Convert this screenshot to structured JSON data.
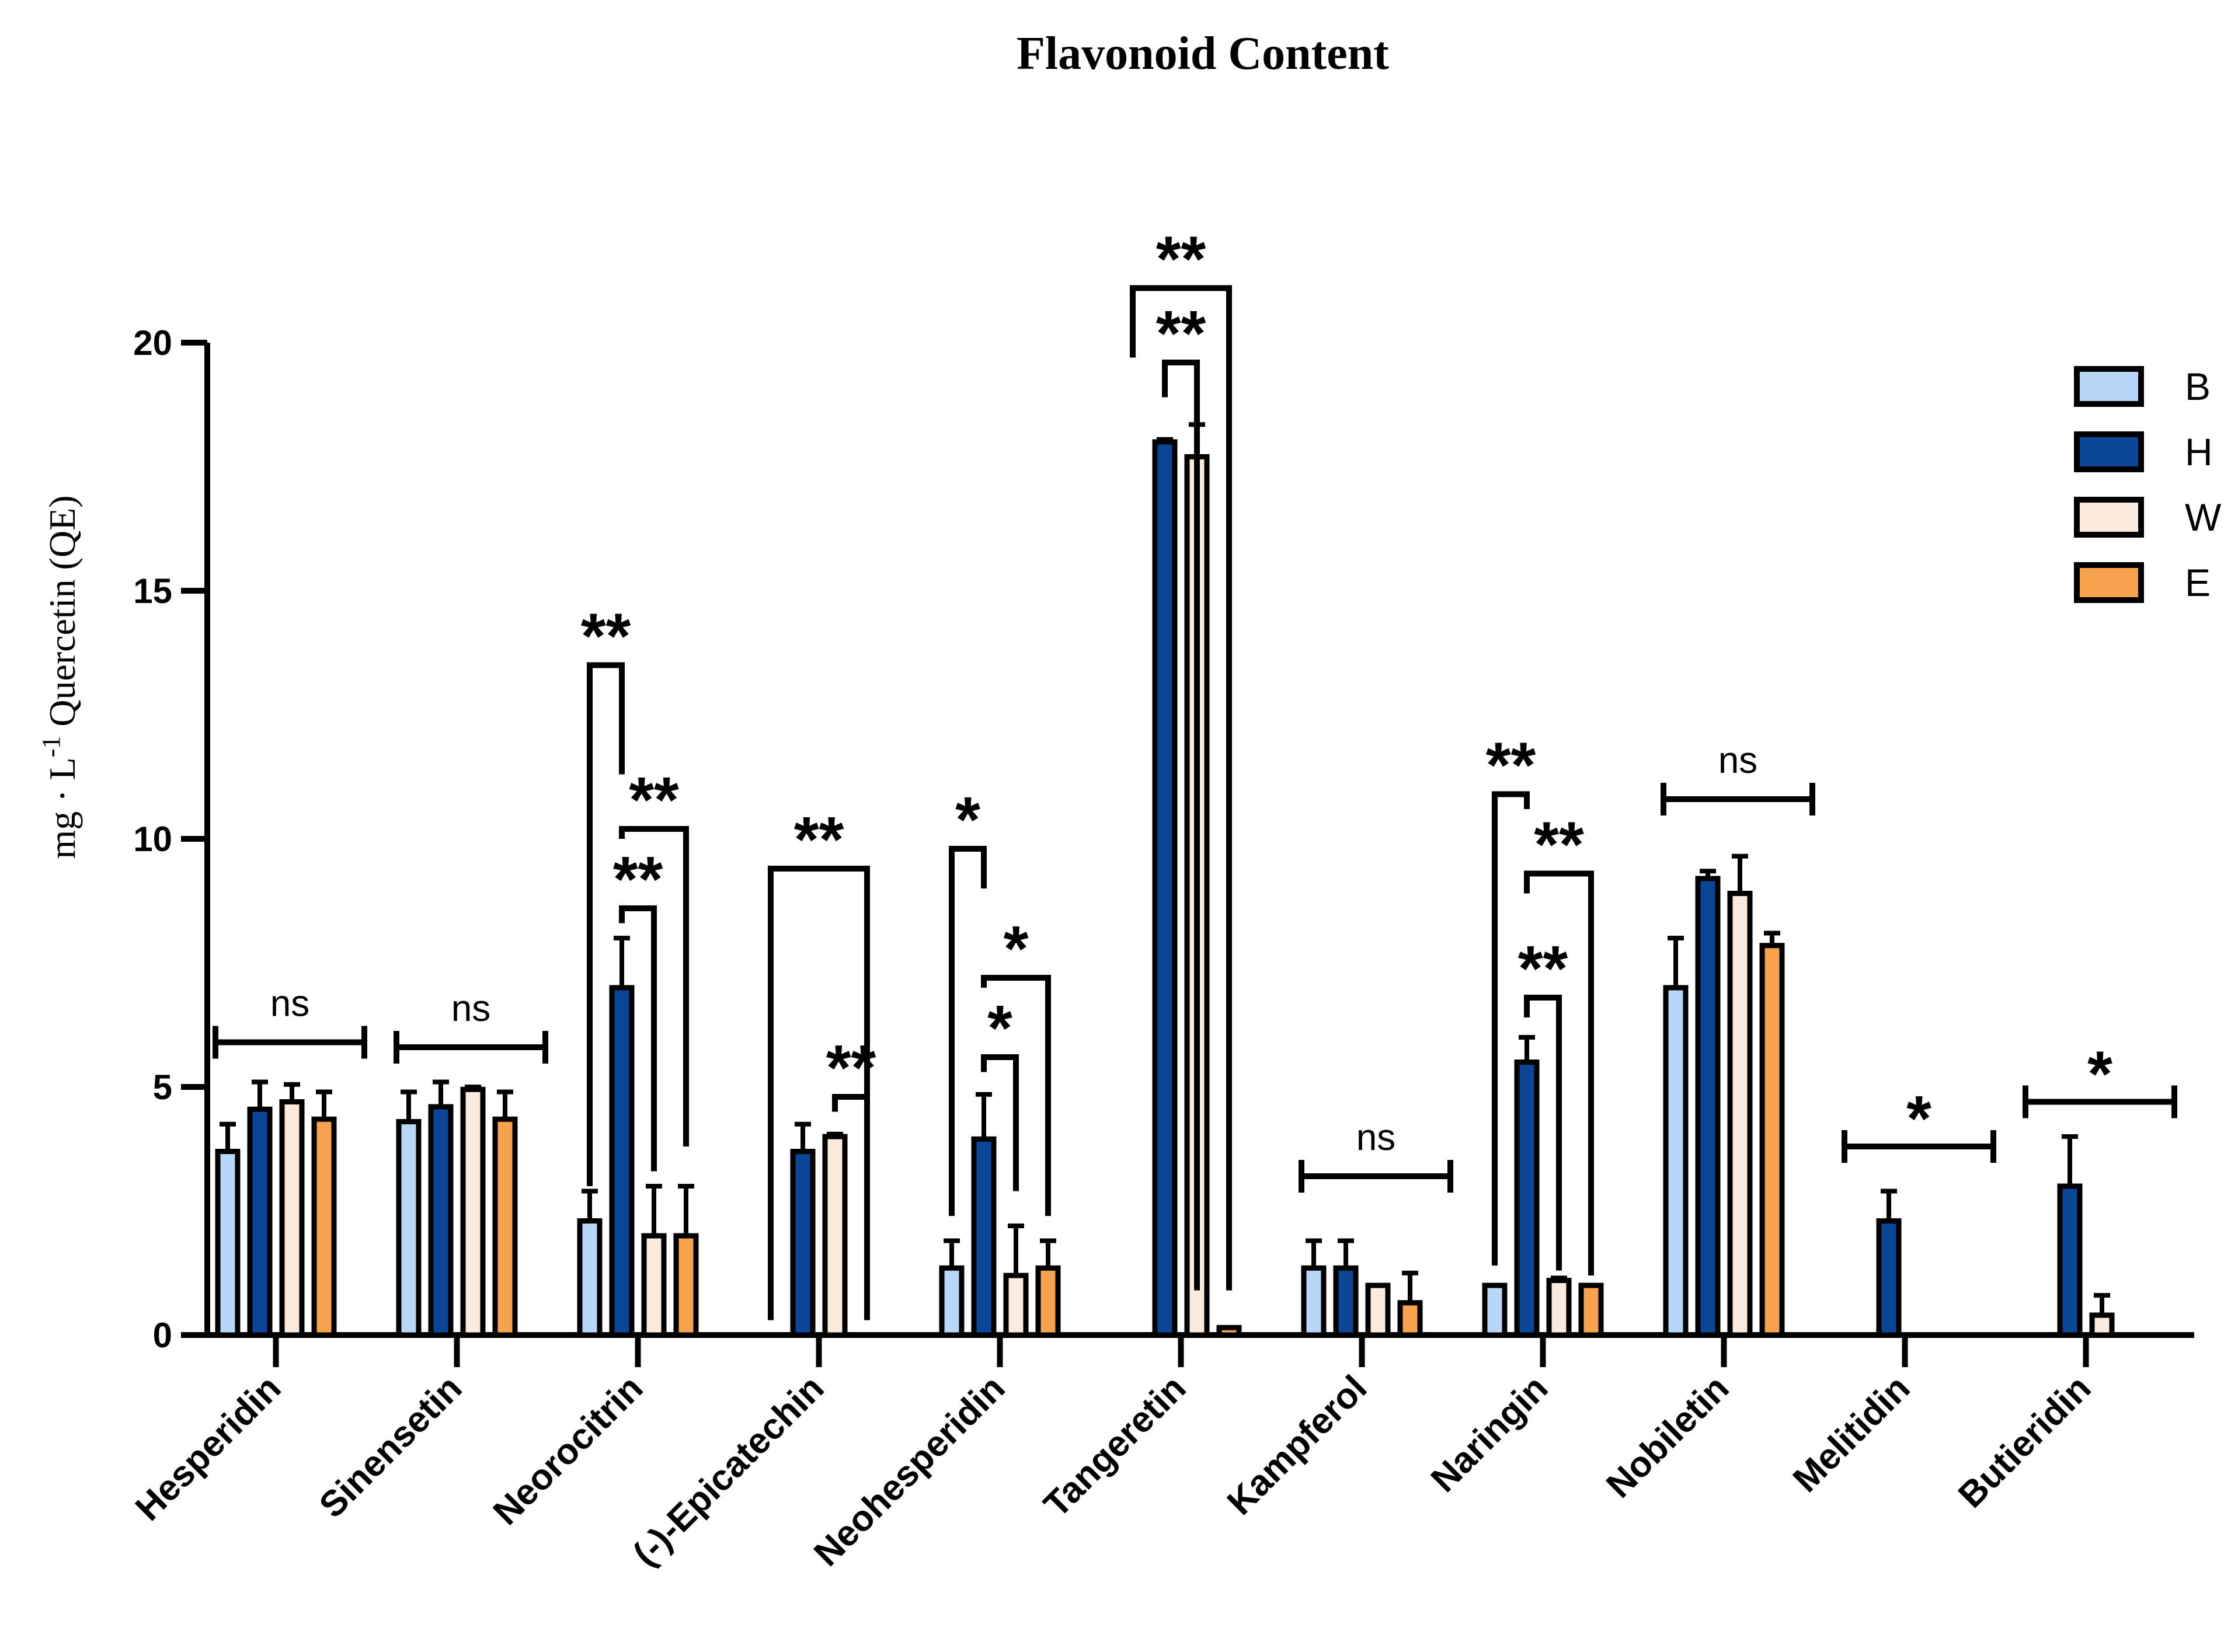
{
  "chart_data": {
    "type": "bar",
    "title": "Flavonoid Content",
    "xlabel": "",
    "ylabel": "mg · L-1 Quercetin (QE)",
    "ylabel_parts": {
      "before": "mg · L",
      "superscript": "-1",
      "after": " Quercetin (QE)"
    },
    "ylim": [
      0,
      20
    ],
    "yticks": [
      0,
      5,
      10,
      15,
      20
    ],
    "categories": [
      "Hesperidin",
      "Sinensetin",
      "Neorocitrin",
      "(-)-Epicatechin",
      "Neohesperidin",
      "Tangeretin",
      "Kampferol",
      "Naringin",
      "Nobiletin",
      "Melitidin",
      "Butieridin"
    ],
    "series": [
      {
        "name": "B",
        "color": "#b8d6f7",
        "values": [
          3.7,
          4.3,
          2.3,
          0,
          1.35,
          0,
          1.35,
          1.0,
          7.0,
          0,
          0
        ],
        "errors": [
          0.55,
          0.6,
          0.6,
          0,
          0.55,
          0,
          0.55,
          0,
          1.0,
          0,
          0
        ]
      },
      {
        "name": "H",
        "color": "#0b4596",
        "values": [
          4.55,
          4.6,
          7.0,
          3.7,
          3.95,
          18.0,
          1.35,
          5.5,
          9.2,
          2.3,
          3.0
        ],
        "errors": [
          0.55,
          0.5,
          1.0,
          0.55,
          0.9,
          0.05,
          0.55,
          0.5,
          0.15,
          0.6,
          1.0
        ]
      },
      {
        "name": "W",
        "color": "#fbebdd",
        "values": [
          4.7,
          4.95,
          2.0,
          4.0,
          1.2,
          17.7,
          1.0,
          1.1,
          8.9,
          0,
          0.4
        ],
        "errors": [
          0.35,
          0.05,
          1.0,
          0.05,
          1.0,
          0.65,
          0,
          0.05,
          0.75,
          0,
          0.4
        ]
      },
      {
        "name": "E",
        "color": "#f6a24f",
        "values": [
          4.35,
          4.35,
          2.0,
          0,
          1.35,
          0.15,
          0.65,
          1.0,
          7.85,
          0,
          0
        ],
        "errors": [
          0.55,
          0.55,
          1.0,
          0,
          0.55,
          0,
          0.6,
          0,
          0.25,
          0,
          0
        ]
      }
    ],
    "significance": [
      {
        "category": "Hesperidin",
        "type": "span",
        "label": "ns",
        "level": 5.9
      },
      {
        "category": "Sinensetin",
        "type": "span",
        "label": "ns",
        "level": 5.8
      },
      {
        "category": "Neorocitrin",
        "type": "bracket",
        "from": "B",
        "to": "H",
        "left_bottom": 3.0,
        "right_bottom": 11.3,
        "top": 13.5,
        "label": "**"
      },
      {
        "category": "Neorocitrin",
        "type": "bracket",
        "from": "H",
        "to": "E",
        "left_bottom": 10.0,
        "right_bottom": 3.8,
        "top": 10.2,
        "label": "**"
      },
      {
        "category": "Neorocitrin",
        "type": "bracket",
        "from": "H",
        "to": "W",
        "left_bottom": 8.3,
        "right_bottom": 3.3,
        "top": 8.6,
        "label": "**"
      },
      {
        "category": "(-)-Epicatechin",
        "type": "bracket",
        "from": "B",
        "to": "E",
        "left_bottom": 0.3,
        "right_bottom": 0.3,
        "top": 9.4,
        "label": "**"
      },
      {
        "category": "(-)-Epicatechin",
        "type": "bracket",
        "from": "W",
        "to": "E",
        "left_bottom": 4.5,
        "right_bottom": 0.3,
        "top": 4.8,
        "label": "**"
      },
      {
        "category": "Neohesperidin",
        "type": "bracket",
        "from": "B",
        "to": "H",
        "left_bottom": 2.4,
        "right_bottom": 9.0,
        "top": 9.8,
        "label": "*"
      },
      {
        "category": "Neohesperidin",
        "type": "bracket",
        "from": "H",
        "to": "E",
        "left_bottom": 7.0,
        "right_bottom": 2.4,
        "top": 7.2,
        "label": "*"
      },
      {
        "category": "Neohesperidin",
        "type": "bracket",
        "from": "H",
        "to": "W",
        "left_bottom": 5.3,
        "right_bottom": 2.9,
        "top": 5.6,
        "label": "*"
      },
      {
        "category": "Tangeretin",
        "type": "bracket",
        "from": "B",
        "to": "E",
        "left_bottom": 19.7,
        "right_bottom": 0.9,
        "top": 21.1,
        "label": "**"
      },
      {
        "category": "Tangeretin",
        "type": "bracket",
        "from": "H",
        "to": "W",
        "left_bottom": 18.9,
        "right_bottom": 0.9,
        "top": 19.6,
        "label": "**"
      },
      {
        "category": "Kampferol",
        "type": "span",
        "label": "ns",
        "level": 3.2
      },
      {
        "category": "Naringin",
        "type": "bracket",
        "from": "B",
        "to": "H",
        "left_bottom": 1.4,
        "right_bottom": 10.6,
        "top": 10.9,
        "label": "**"
      },
      {
        "category": "Naringin",
        "type": "bracket",
        "from": "H",
        "to": "E",
        "left_bottom": 8.9,
        "right_bottom": 1.2,
        "top": 9.3,
        "label": "**"
      },
      {
        "category": "Naringin",
        "type": "bracket",
        "from": "H",
        "to": "W",
        "left_bottom": 6.4,
        "right_bottom": 1.3,
        "top": 6.8,
        "label": "**"
      },
      {
        "category": "Nobiletin",
        "type": "span",
        "label": "ns",
        "level": 10.8
      },
      {
        "category": "Melitidin",
        "type": "span",
        "label": "*",
        "level": 3.8
      },
      {
        "category": "Butieridin",
        "type": "span",
        "label": "*",
        "level": 4.7
      }
    ],
    "legend": {
      "position": "top-right",
      "entries": [
        "B",
        "H",
        "W",
        "E"
      ]
    },
    "grid": false
  }
}
